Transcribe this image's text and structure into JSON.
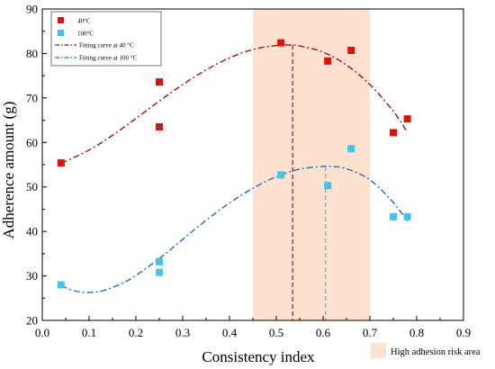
{
  "chart_data": {
    "type": "scatter",
    "title": "",
    "xlabel": "Consistency index",
    "ylabel": "Adherence amount (g)",
    "xlim": [
      0.0,
      0.9
    ],
    "ylim": [
      20,
      90
    ],
    "x_ticks": [
      "0.0",
      "0.1",
      "0.2",
      "0.3",
      "0.4",
      "0.5",
      "0.6",
      "0.7",
      "0.8",
      "0.9"
    ],
    "y_ticks": [
      "20",
      "30",
      "40",
      "50",
      "60",
      "70",
      "80",
      "90"
    ],
    "grid": false,
    "legend_position": "top-left",
    "legend": {
      "entries": [
        "40°C",
        "100°C",
        "Fitting curve at 40 °C",
        "Fitting curve at 100 °C"
      ]
    },
    "risk_area": {
      "label": "High adhesion risk area",
      "x_range": [
        0.45,
        0.7
      ],
      "color": "#fde2d0"
    },
    "series": [
      {
        "name": "40°C",
        "kind": "points",
        "color": "#e01010",
        "points": [
          [
            0.04,
            55.4
          ],
          [
            0.25,
            73.6
          ],
          [
            0.25,
            63.5
          ],
          [
            0.51,
            82.4
          ],
          [
            0.61,
            78.3
          ],
          [
            0.66,
            80.7
          ],
          [
            0.75,
            62.2
          ],
          [
            0.78,
            65.3
          ]
        ]
      },
      {
        "name": "100°C",
        "kind": "points",
        "color": "#40c4ef",
        "points": [
          [
            0.04,
            28.0
          ],
          [
            0.25,
            33.2
          ],
          [
            0.25,
            30.8
          ],
          [
            0.51,
            52.7
          ],
          [
            0.61,
            50.3
          ],
          [
            0.66,
            58.6
          ],
          [
            0.75,
            43.3
          ],
          [
            0.78,
            43.3
          ]
        ]
      },
      {
        "name": "Fitting curve at 40 °C",
        "kind": "curve",
        "color": "#a81010",
        "points": [
          [
            0.04,
            55.3
          ],
          [
            0.1,
            58.3
          ],
          [
            0.15,
            61.6
          ],
          [
            0.2,
            65.4
          ],
          [
            0.25,
            69.3
          ],
          [
            0.3,
            73.0
          ],
          [
            0.35,
            76.3
          ],
          [
            0.4,
            79.0
          ],
          [
            0.45,
            80.9
          ],
          [
            0.5,
            81.8
          ],
          [
            0.535,
            81.9
          ],
          [
            0.55,
            81.7
          ],
          [
            0.6,
            80.3
          ],
          [
            0.65,
            77.4
          ],
          [
            0.7,
            73.0
          ],
          [
            0.75,
            67.0
          ],
          [
            0.78,
            62.3
          ]
        ]
      },
      {
        "name": "Fitting curve at 100 °C",
        "kind": "curve",
        "color": "#1e6fc0",
        "points": [
          [
            0.04,
            27.8
          ],
          [
            0.07,
            26.6
          ],
          [
            0.1,
            26.3
          ],
          [
            0.13,
            26.7
          ],
          [
            0.17,
            28.3
          ],
          [
            0.2,
            30.1
          ],
          [
            0.25,
            33.9
          ],
          [
            0.3,
            38.2
          ],
          [
            0.35,
            42.5
          ],
          [
            0.4,
            46.4
          ],
          [
            0.45,
            49.7
          ],
          [
            0.5,
            52.3
          ],
          [
            0.55,
            54.0
          ],
          [
            0.6,
            54.6
          ],
          [
            0.62,
            54.6
          ],
          [
            0.65,
            54.1
          ],
          [
            0.7,
            51.6
          ],
          [
            0.75,
            46.5
          ],
          [
            0.78,
            42.3
          ]
        ]
      }
    ],
    "peak_markers": [
      {
        "series": "Fitting curve at 40 °C",
        "x": 0.535,
        "y": 81.9,
        "color": "#e01010"
      },
      {
        "series": "Fitting curve at 100 °C",
        "x": 0.605,
        "y": 54.6,
        "color": "#40c4ef"
      }
    ]
  }
}
